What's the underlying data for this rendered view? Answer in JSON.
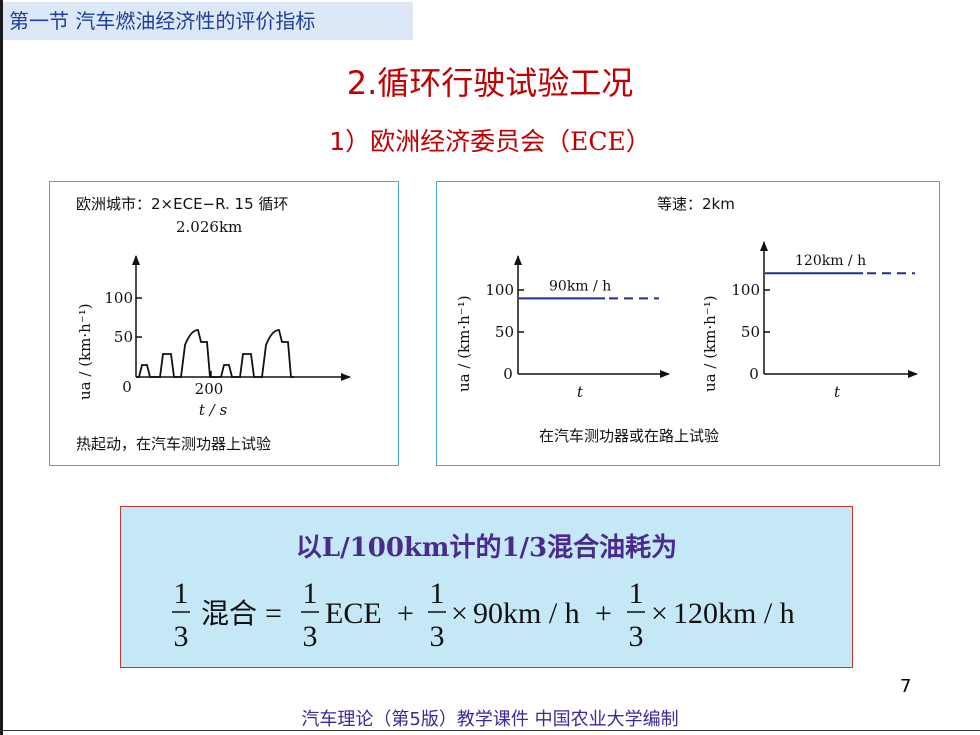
{
  "section_tag": "第一节  汽车燃油经济性的评价指标",
  "title": "2.循环行驶试验工况",
  "subtitle": {
    "prefix": "1）欧洲经济委员会（",
    "abbr": "ECE",
    "suffix": "）"
  },
  "left_panel": {
    "header_line1": "欧洲城市：2×ECE−R. 15 循环",
    "header_line2": "2.026km",
    "y_label": "ua / (km·h⁻¹)",
    "y_ticks": [
      "100",
      "50",
      "0"
    ],
    "x_tick": "200",
    "x_label": "t / s",
    "caption": "热起动，在汽车测功器上试验"
  },
  "right_panel": {
    "header": "等速：2km",
    "chart1": {
      "label": "90km / h",
      "speed": 90,
      "y_ticks": [
        "100",
        "50",
        "0"
      ],
      "x_label": "t"
    },
    "chart2": {
      "label": "120km / h",
      "speed": 120,
      "y_ticks": [
        "100",
        "50",
        "0"
      ],
      "x_label": "t"
    },
    "y_label": "ua / (km·h⁻¹)",
    "caption": "在汽车测功器或在路上试验"
  },
  "formula": {
    "heading_pre": "以",
    "heading_unit": "L/100km",
    "heading_mid": "计的",
    "heading_frac": "1/3",
    "heading_post": "混合油耗为",
    "num": "1",
    "den": "3",
    "lhs": "混合",
    "eq": "=",
    "term1": "ECE",
    "plus": "+",
    "times": "×",
    "term2": "90km / h",
    "term3": "120km / h"
  },
  "page_number": "7",
  "footer": "汽车理论（第5版）教学课件    中国农业大学编制",
  "colors": {
    "title": "#c00000",
    "formula_bg": "#c5e8f7",
    "speed_line": "#1f2f8f"
  }
}
